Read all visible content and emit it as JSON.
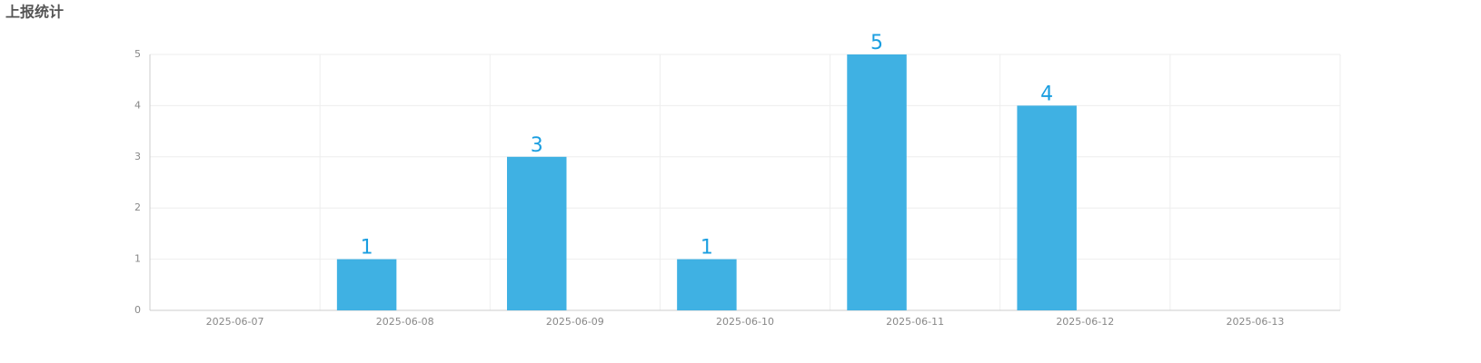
{
  "chart_data": {
    "type": "bar",
    "title": "上报统计",
    "categories": [
      "2025-06-07",
      "2025-06-08",
      "2025-06-09",
      "2025-06-10",
      "2025-06-11",
      "2025-06-12",
      "2025-06-13"
    ],
    "values": [
      0,
      1,
      3,
      1,
      5,
      4,
      0
    ],
    "color": "#3fb1e3",
    "label_color": "#1a9ee0",
    "ylim": [
      0,
      5
    ],
    "yticks": [
      0,
      1,
      2,
      3,
      4,
      5
    ],
    "grid": true
  }
}
